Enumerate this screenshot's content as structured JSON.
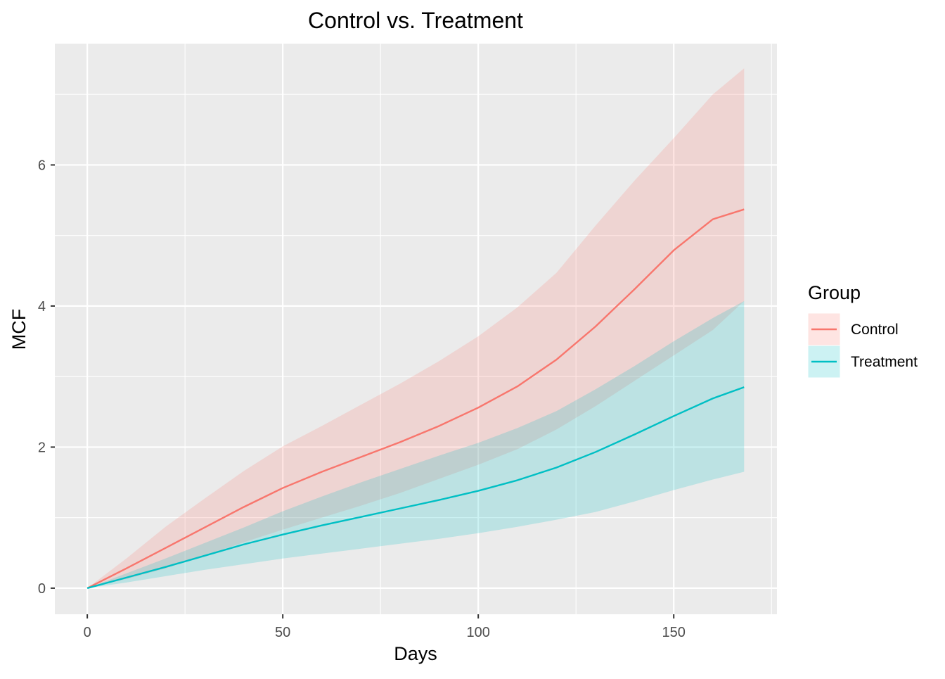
{
  "chart_data": {
    "type": "area",
    "title": "Control vs. Treatment",
    "xlabel": "Days",
    "ylabel": "MCF",
    "xlim": [
      -8.3,
      176.4
    ],
    "ylim": [
      -0.37,
      7.72
    ],
    "x_ticks": [
      0,
      50,
      100,
      150
    ],
    "y_ticks": [
      0,
      2,
      4,
      6
    ],
    "x_tick_labels": [
      "0",
      "50",
      "100",
      "150"
    ],
    "y_tick_labels": [
      "0",
      "2",
      "4",
      "6"
    ],
    "grid": true,
    "background": "#EBEBEB",
    "legend": {
      "title": "Group",
      "placement": "right"
    },
    "series": [
      {
        "name": "Control",
        "color": "#F8766D",
        "fill_color": "#F8766D",
        "fill_opacity": 0.2,
        "x": [
          0,
          10,
          20,
          30,
          40,
          50,
          60,
          70,
          80,
          90,
          100,
          110,
          120,
          130,
          140,
          150,
          160,
          168
        ],
        "y": [
          0,
          0.28,
          0.57,
          0.86,
          1.15,
          1.42,
          1.65,
          1.86,
          2.07,
          2.3,
          2.56,
          2.86,
          3.24,
          3.71,
          4.24,
          4.79,
          5.23,
          5.37
        ],
        "lower": [
          0,
          0.13,
          0.28,
          0.46,
          0.65,
          0.83,
          1.0,
          1.17,
          1.35,
          1.55,
          1.75,
          1.97,
          2.25,
          2.58,
          2.94,
          3.3,
          3.66,
          4.07
        ],
        "upper": [
          0,
          0.42,
          0.87,
          1.27,
          1.66,
          2.01,
          2.3,
          2.6,
          2.9,
          3.22,
          3.57,
          3.98,
          4.47,
          5.14,
          5.78,
          6.38,
          7.0,
          7.37
        ]
      },
      {
        "name": "Treatment",
        "color": "#00BFC4",
        "fill_color": "#00BFC4",
        "fill_opacity": 0.2,
        "x": [
          0,
          10,
          20,
          30,
          40,
          50,
          60,
          70,
          80,
          90,
          100,
          110,
          120,
          130,
          140,
          150,
          160,
          168
        ],
        "y": [
          0,
          0.15,
          0.3,
          0.46,
          0.62,
          0.76,
          0.89,
          1.01,
          1.13,
          1.25,
          1.38,
          1.53,
          1.71,
          1.93,
          2.18,
          2.44,
          2.69,
          2.85
        ],
        "lower": [
          0,
          0.08,
          0.17,
          0.26,
          0.34,
          0.42,
          0.49,
          0.56,
          0.63,
          0.7,
          0.78,
          0.87,
          0.97,
          1.08,
          1.23,
          1.39,
          1.54,
          1.65
        ],
        "upper": [
          0,
          0.21,
          0.42,
          0.64,
          0.86,
          1.09,
          1.3,
          1.5,
          1.69,
          1.88,
          2.06,
          2.27,
          2.51,
          2.82,
          3.15,
          3.5,
          3.83,
          4.07
        ]
      }
    ]
  }
}
